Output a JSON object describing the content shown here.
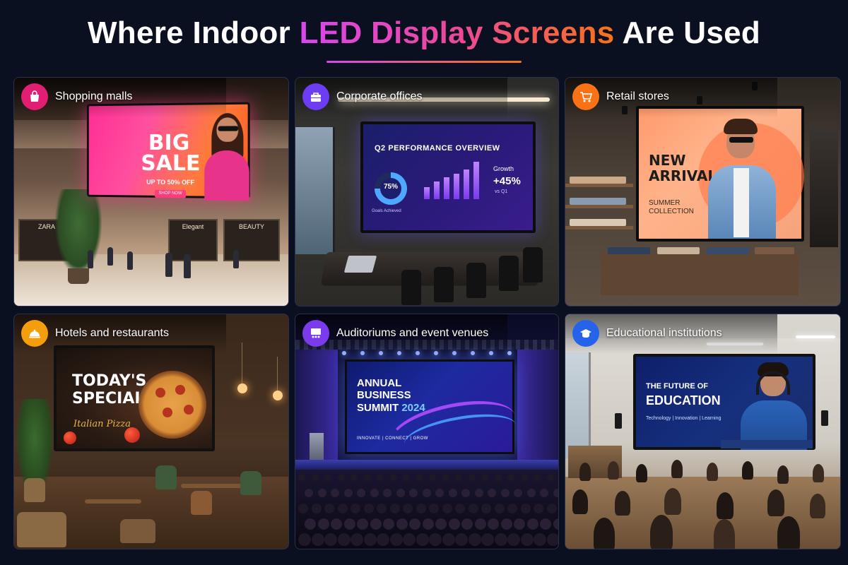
{
  "title": {
    "prefix": "Where Indoor",
    "highlight": "LED Display Screens",
    "suffix": "Are Used"
  },
  "accent_gradient": [
    "#d946ef",
    "#ec4899",
    "#f97316"
  ],
  "tiles": [
    {
      "label": "Shopping malls",
      "icon": "shopping-bag-icon",
      "badge_color": "#e11d74",
      "screen": {
        "headline": "BIG SALE",
        "subline": "UP TO 50% OFF",
        "cta": "SHOP NOW"
      },
      "store_signs": [
        "ZARA",
        "Elegant",
        "BEAUTY"
      ]
    },
    {
      "label": "Corporate offices",
      "icon": "briefcase-icon",
      "badge_color": "#6d3df5",
      "screen": {
        "title": "Q2 PERFORMANCE OVERVIEW",
        "donut_value": "75%",
        "donut_fraction": 0.75,
        "donut_caption": "Goals Achieved",
        "growth_label": "Growth",
        "growth_value": "+45%",
        "growth_compare": "vs Q1",
        "bar_heights": [
          0.3,
          0.45,
          0.55,
          0.65,
          0.75,
          0.95
        ]
      }
    },
    {
      "label": "Retail stores",
      "icon": "shopping-cart-icon",
      "badge_color": "#f97316",
      "screen": {
        "headline_1": "NEW",
        "headline_2": "ARRIVALS",
        "sub_1": "SUMMER",
        "sub_2": "COLLECTION"
      }
    },
    {
      "label": "Hotels and restaurants",
      "icon": "cloche-icon",
      "badge_color": "#f59e0b",
      "screen": {
        "headline_1": "TODAY'S",
        "headline_2": "SPECIAL",
        "dish": "Italian Pizza"
      }
    },
    {
      "label": "Auditoriums and event venues",
      "icon": "stage-icon",
      "badge_color": "#7c3aed",
      "screen": {
        "line_1": "ANNUAL",
        "line_2": "BUSINESS",
        "line_3": "SUMMIT",
        "year": "2024",
        "tagline": "INNOVATE | CONNECT | GROW"
      }
    },
    {
      "label": "Educational institutions",
      "icon": "graduation-cap-icon",
      "badge_color": "#2563eb",
      "screen": {
        "line_1": "THE FUTURE OF",
        "line_2": "EDUCATION",
        "tagline": "Technology | Innovation | Learning"
      }
    }
  ]
}
